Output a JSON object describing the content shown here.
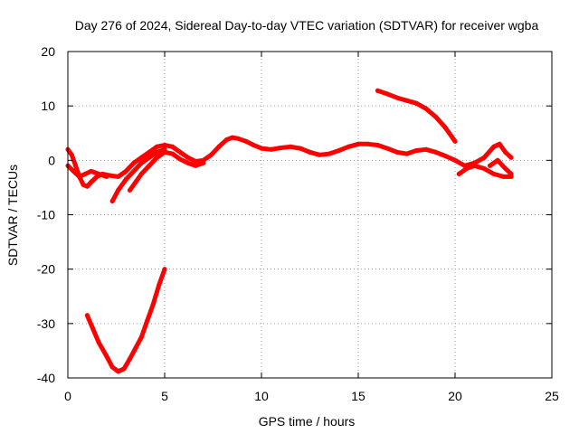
{
  "chart_data": {
    "type": "scatter",
    "title": "Day 276 of 2024, Sidereal Day-to-day VTEC variation (SDTVAR) for receiver wgba",
    "xlabel": "GPS time / hours",
    "ylabel": "SDTVAR / TECUs",
    "xlim": [
      0,
      25
    ],
    "ylim": [
      -40,
      20
    ],
    "xticks": [
      0,
      5,
      10,
      15,
      20,
      25
    ],
    "yticks": [
      -40,
      -30,
      -20,
      -10,
      0,
      10,
      20
    ],
    "grid": true,
    "series_color": "#ff0000",
    "series": [
      {
        "name": "main-trace",
        "points": [
          [
            0.0,
            2.0
          ],
          [
            0.2,
            1.0
          ],
          [
            0.4,
            -1.0
          ],
          [
            0.6,
            -3.0
          ],
          [
            0.8,
            -4.5
          ],
          [
            1.0,
            -4.8
          ],
          [
            1.2,
            -4.0
          ],
          [
            1.5,
            -3.0
          ],
          [
            1.8,
            -2.5
          ],
          [
            2.2,
            -2.8
          ],
          [
            2.6,
            -3.0
          ],
          [
            3.0,
            -2.0
          ],
          [
            3.4,
            -0.5
          ],
          [
            3.8,
            0.5
          ],
          [
            4.2,
            1.5
          ],
          [
            4.6,
            2.5
          ],
          [
            5.0,
            2.8
          ],
          [
            5.4,
            2.5
          ],
          [
            5.8,
            1.5
          ],
          [
            6.2,
            0.5
          ],
          [
            6.6,
            -0.2
          ],
          [
            7.0,
            0.0
          ],
          [
            7.4,
            1.0
          ],
          [
            7.8,
            2.5
          ],
          [
            8.2,
            3.8
          ],
          [
            8.5,
            4.2
          ],
          [
            8.8,
            4.0
          ],
          [
            9.2,
            3.5
          ],
          [
            9.6,
            2.8
          ],
          [
            10.0,
            2.2
          ],
          [
            10.5,
            2.0
          ],
          [
            11.0,
            2.3
          ],
          [
            11.5,
            2.5
          ],
          [
            12.0,
            2.2
          ],
          [
            12.5,
            1.5
          ],
          [
            13.0,
            1.0
          ],
          [
            13.5,
            1.2
          ],
          [
            14.0,
            1.8
          ],
          [
            14.5,
            2.5
          ],
          [
            15.0,
            3.0
          ],
          [
            15.5,
            3.0
          ],
          [
            16.0,
            2.8
          ],
          [
            16.5,
            2.2
          ],
          [
            17.0,
            1.5
          ],
          [
            17.5,
            1.2
          ],
          [
            18.0,
            1.8
          ],
          [
            18.5,
            2.0
          ],
          [
            19.0,
            1.5
          ],
          [
            19.5,
            0.8
          ],
          [
            20.0,
            0.0
          ],
          [
            20.5,
            -1.0
          ],
          [
            21.0,
            -0.5
          ],
          [
            21.5,
            0.5
          ],
          [
            22.0,
            2.5
          ],
          [
            22.3,
            3.0
          ],
          [
            22.6,
            1.5
          ],
          [
            22.9,
            0.5
          ]
        ]
      },
      {
        "name": "branch-1",
        "points": [
          [
            0.0,
            -1.0
          ],
          [
            0.3,
            -2.0
          ],
          [
            0.6,
            -3.0
          ],
          [
            0.9,
            -2.5
          ],
          [
            1.2,
            -2.0
          ],
          [
            1.6,
            -2.5
          ],
          [
            2.0,
            -3.0
          ]
        ]
      },
      {
        "name": "branch-2",
        "points": [
          [
            2.3,
            -7.5
          ],
          [
            2.6,
            -5.5
          ],
          [
            3.0,
            -3.5
          ],
          [
            3.4,
            -2.0
          ],
          [
            3.8,
            -0.5
          ],
          [
            4.2,
            0.5
          ],
          [
            4.6,
            1.5
          ],
          [
            5.0,
            2.0
          ]
        ]
      },
      {
        "name": "branch-3",
        "points": [
          [
            3.2,
            -5.5
          ],
          [
            3.5,
            -4.0
          ],
          [
            3.8,
            -2.5
          ],
          [
            4.2,
            -1.0
          ],
          [
            4.6,
            0.5
          ],
          [
            5.0,
            1.5
          ],
          [
            5.4,
            1.2
          ],
          [
            5.8,
            0.2
          ],
          [
            6.2,
            -0.5
          ],
          [
            6.6,
            -1.0
          ],
          [
            7.0,
            -0.5
          ]
        ]
      },
      {
        "name": "branch-4",
        "points": [
          [
            20.2,
            -2.5
          ],
          [
            20.6,
            -1.5
          ],
          [
            21.0,
            -1.0
          ],
          [
            21.5,
            -1.5
          ],
          [
            22.0,
            -2.5
          ],
          [
            22.5,
            -3.0
          ],
          [
            22.9,
            -3.0
          ]
        ]
      },
      {
        "name": "branch-5",
        "points": [
          [
            21.8,
            -1.0
          ],
          [
            22.2,
            0.0
          ],
          [
            22.6,
            -1.5
          ],
          [
            22.9,
            -2.5
          ]
        ]
      },
      {
        "name": "upper-trace",
        "points": [
          [
            16.0,
            12.8
          ],
          [
            16.5,
            12.2
          ],
          [
            17.0,
            11.5
          ],
          [
            17.5,
            11.0
          ],
          [
            18.0,
            10.5
          ],
          [
            18.5,
            9.5
          ],
          [
            19.0,
            8.0
          ],
          [
            19.5,
            6.0
          ],
          [
            20.0,
            3.5
          ]
        ]
      },
      {
        "name": "lower-trace",
        "points": [
          [
            1.0,
            -28.5
          ],
          [
            1.3,
            -31.0
          ],
          [
            1.6,
            -33.5
          ],
          [
            2.0,
            -36.0
          ],
          [
            2.3,
            -38.0
          ],
          [
            2.6,
            -38.8
          ],
          [
            2.9,
            -38.3
          ],
          [
            3.2,
            -36.5
          ],
          [
            3.5,
            -34.5
          ],
          [
            3.8,
            -32.5
          ],
          [
            4.1,
            -29.5
          ],
          [
            4.4,
            -26.5
          ],
          [
            4.7,
            -23.0
          ],
          [
            5.0,
            -20.0
          ]
        ]
      }
    ]
  }
}
